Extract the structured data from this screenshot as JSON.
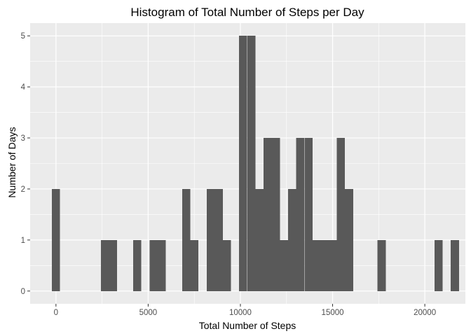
{
  "chart_data": {
    "type": "bar",
    "title": "Histogram of Total Number of Steps per Day",
    "xlabel": "Total Number of Steps",
    "ylabel": "Number of Days",
    "xlim": [
      -1400,
      22200
    ],
    "ylim": [
      -0.25,
      5.25
    ],
    "bin_width": 441.5,
    "x_ticks": [
      0,
      5000,
      10000,
      15000,
      20000
    ],
    "x_tick_labels": [
      "0",
      "5000",
      "10000",
      "15000",
      "20000"
    ],
    "y_ticks": [
      0,
      1,
      2,
      3,
      4,
      5
    ],
    "y_tick_labels": [
      "0",
      "1",
      "2",
      "3",
      "4",
      "5"
    ],
    "colors": {
      "panel": "#ebebeb",
      "grid_major": "#ffffff",
      "bar": "#595959",
      "tick_text": "#4d4d4d"
    },
    "bins": [
      {
        "x": 0,
        "count": 2
      },
      {
        "x": 2650,
        "count": 1
      },
      {
        "x": 3090,
        "count": 1
      },
      {
        "x": 4410,
        "count": 1
      },
      {
        "x": 5300,
        "count": 1
      },
      {
        "x": 5740,
        "count": 1
      },
      {
        "x": 7060,
        "count": 2
      },
      {
        "x": 7500,
        "count": 1
      },
      {
        "x": 8390,
        "count": 2
      },
      {
        "x": 8830,
        "count": 2
      },
      {
        "x": 9270,
        "count": 1
      },
      {
        "x": 10150,
        "count": 5
      },
      {
        "x": 10600,
        "count": 5
      },
      {
        "x": 11040,
        "count": 2
      },
      {
        "x": 11480,
        "count": 3
      },
      {
        "x": 11920,
        "count": 3
      },
      {
        "x": 12360,
        "count": 1
      },
      {
        "x": 12800,
        "count": 2
      },
      {
        "x": 13240,
        "count": 3
      },
      {
        "x": 13690,
        "count": 3
      },
      {
        "x": 14130,
        "count": 1
      },
      {
        "x": 14570,
        "count": 1
      },
      {
        "x": 15010,
        "count": 1
      },
      {
        "x": 15450,
        "count": 3
      },
      {
        "x": 15890,
        "count": 2
      },
      {
        "x": 17660,
        "count": 1
      },
      {
        "x": 20750,
        "count": 1
      },
      {
        "x": 21630,
        "count": 1
      }
    ]
  }
}
